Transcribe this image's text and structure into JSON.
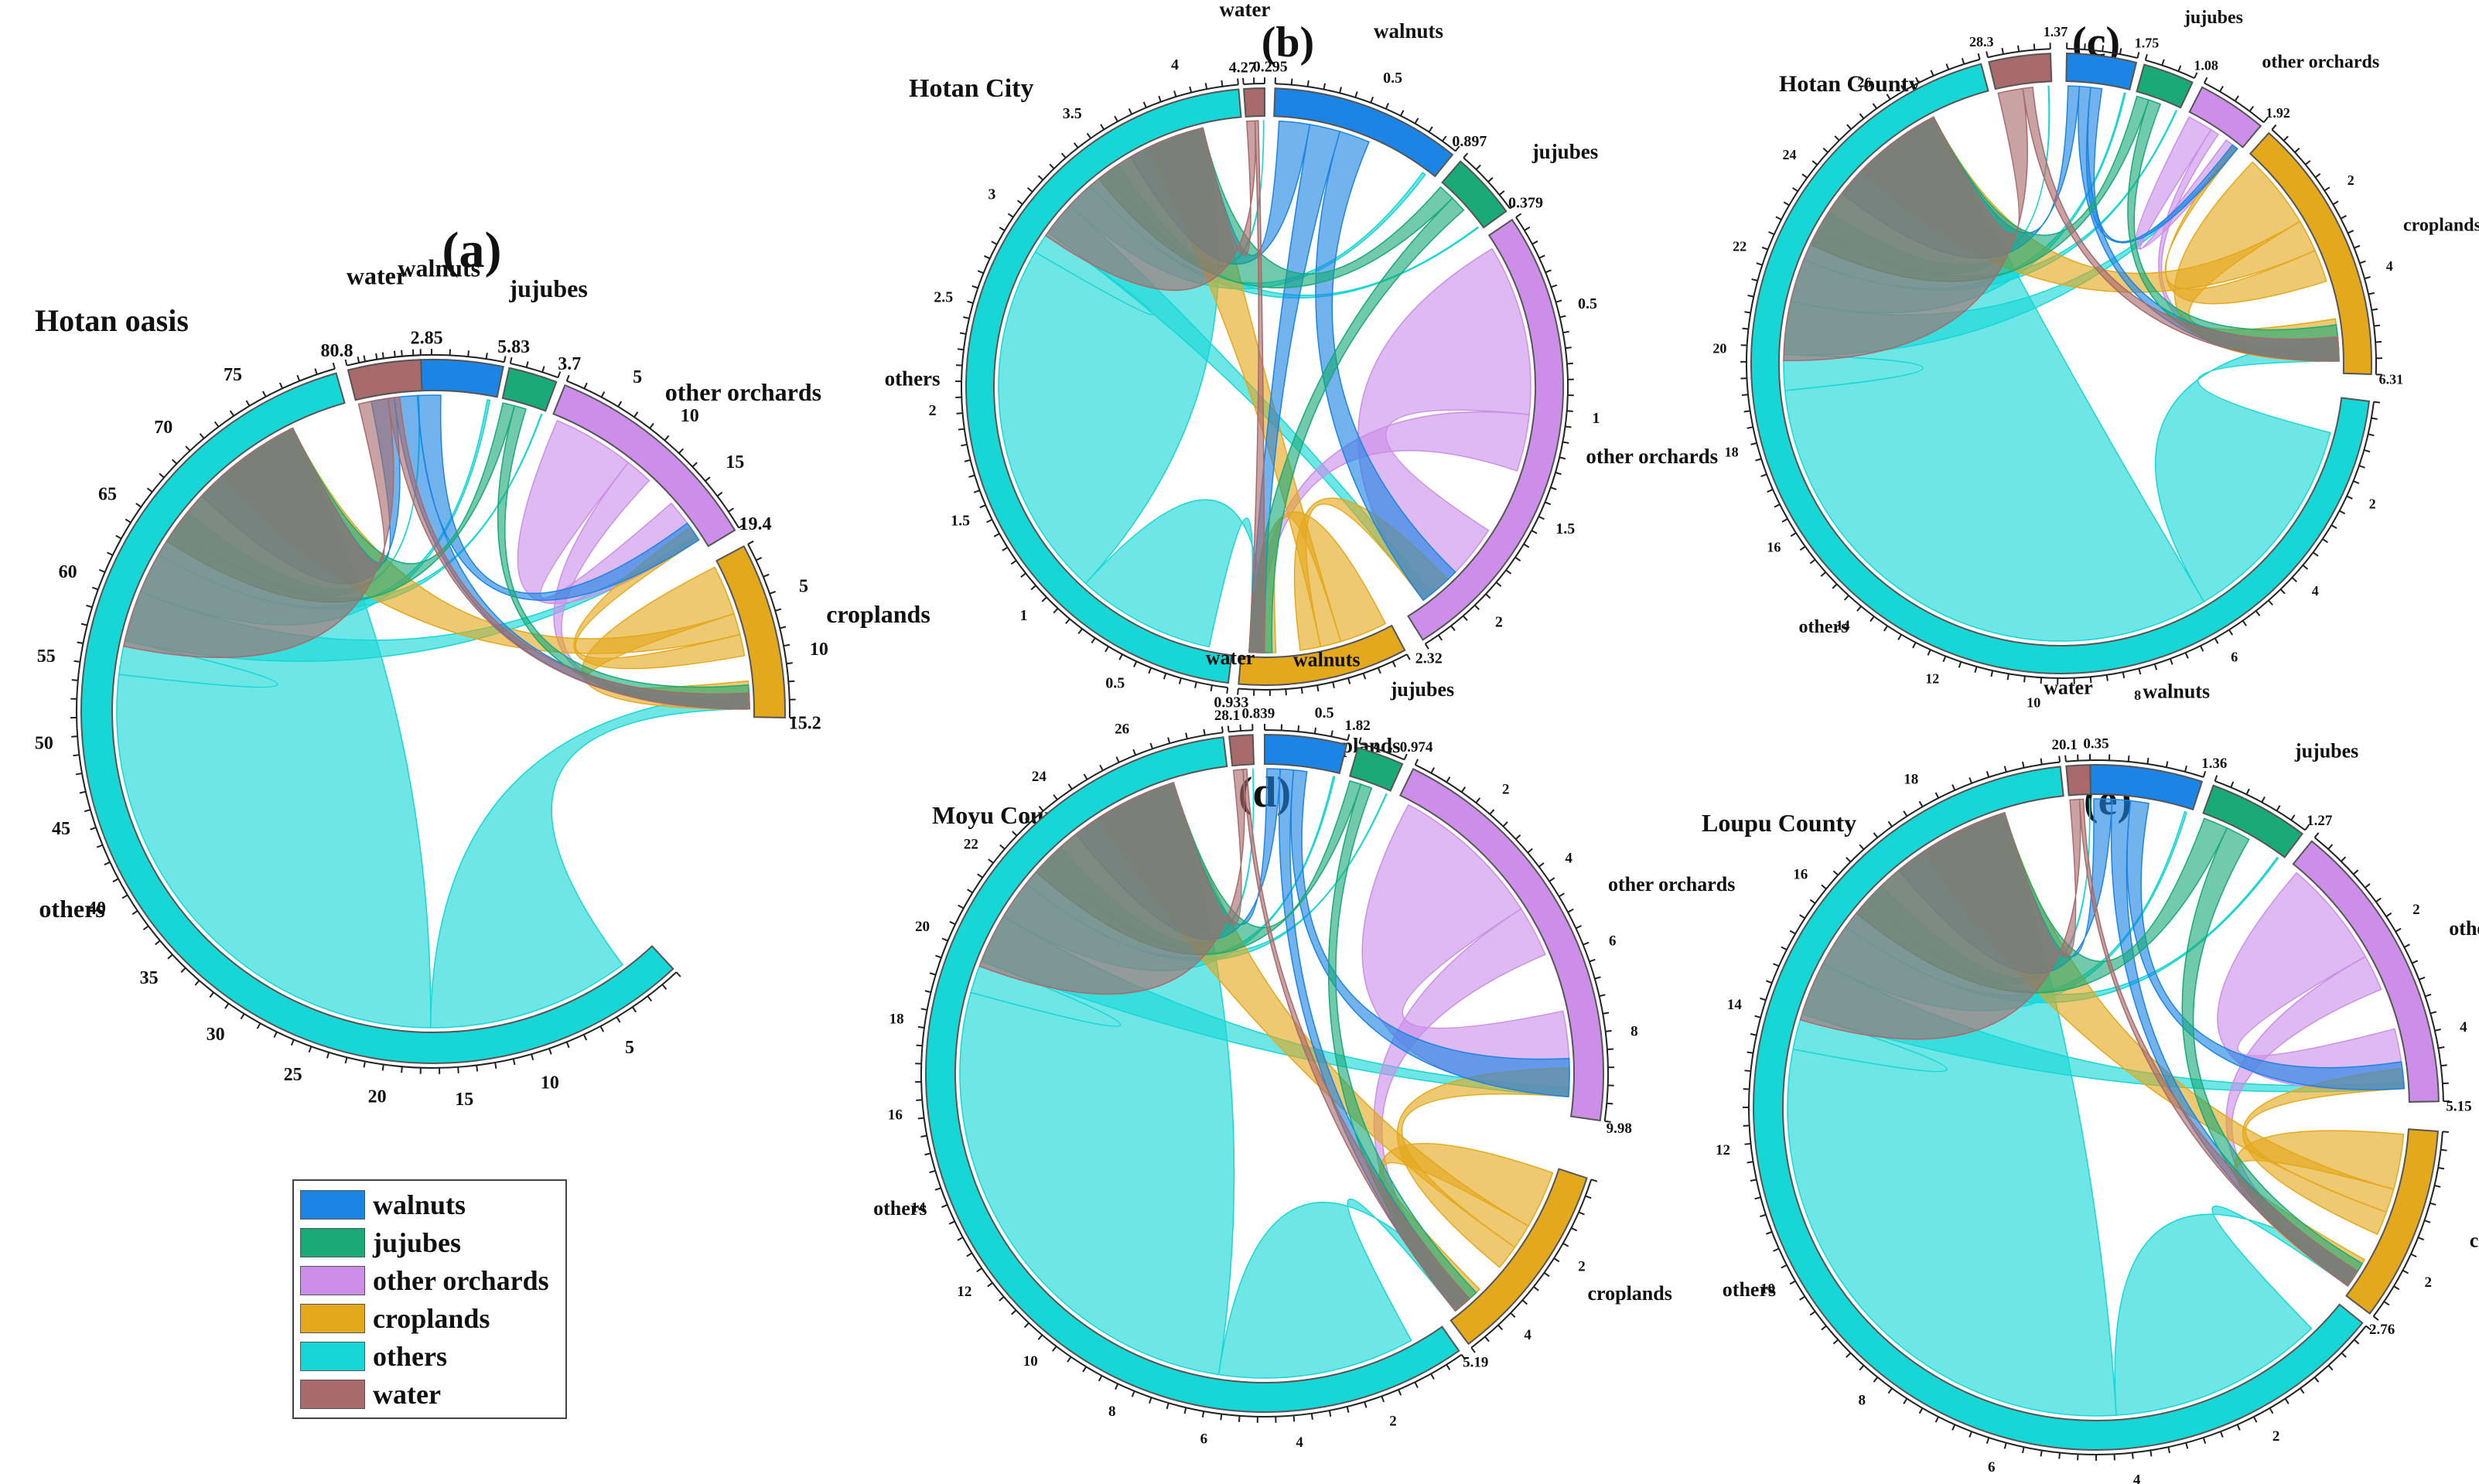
{
  "categories": [
    "walnuts",
    "jujubes",
    "other orchards",
    "croplands",
    "others",
    "water"
  ],
  "colors": {
    "walnuts": "#1b84e4",
    "jujubes": "#19aa78",
    "other orchards": "#cc8ee8",
    "croplands": "#e4a81c",
    "others": "#17d6d6",
    "water": "#a86a6a"
  },
  "legend": [
    {
      "label": "walnuts",
      "color": "#1b84e4"
    },
    {
      "label": "jujubes",
      "color": "#19aa78"
    },
    {
      "label": "other orchards",
      "color": "#cc8ee8"
    },
    {
      "label": "croplands",
      "color": "#e4a81c"
    },
    {
      "label": "others",
      "color": "#17d6d6"
    },
    {
      "label": "water",
      "color": "#a86a6a"
    }
  ],
  "chart_data": [
    {
      "type": "chord",
      "panel_label": "(a)",
      "title": "Hotan oasis",
      "sectors": [
        {
          "name": "walnuts",
          "value": 5.83,
          "end_label": "5.83",
          "ticks": []
        },
        {
          "name": "jujubes",
          "value": 3.7,
          "end_label": "3.7",
          "ticks": []
        },
        {
          "name": "other orchards",
          "value": 19.4,
          "end_label": "19.4",
          "ticks": [
            "5",
            "10",
            "15"
          ]
        },
        {
          "name": "croplands",
          "value": 15.2,
          "end_label": "15.2",
          "ticks": [
            "5",
            "10"
          ]
        },
        {
          "name": "others",
          "value": 80.8,
          "end_label": "80.8",
          "ticks": [
            "5",
            "10",
            "15",
            "20",
            "25",
            "30",
            "35",
            "40",
            "45",
            "50",
            "55",
            "60",
            "65",
            "70",
            "75"
          ]
        },
        {
          "name": "water",
          "value": 2.85,
          "end_label": "2.85",
          "ticks": []
        }
      ]
    },
    {
      "type": "chord",
      "panel_label": "(b)",
      "title": "Hotan City",
      "sectors": [
        {
          "name": "walnuts",
          "value": 0.897,
          "end_label": "0.897",
          "ticks": [
            "0.5"
          ]
        },
        {
          "name": "jujubes",
          "value": 0.379,
          "end_label": "0.379",
          "ticks": []
        },
        {
          "name": "other orchards",
          "value": 2.32,
          "end_label": "2.32",
          "ticks": [
            "0.5",
            "1",
            "1.5",
            "2"
          ]
        },
        {
          "name": "croplands",
          "value": 0.933,
          "end_label": "0.933",
          "ticks": [
            "0.5"
          ]
        },
        {
          "name": "others",
          "value": 4.27,
          "end_label": "4.27",
          "ticks": [
            "0.5",
            "1",
            "1.5",
            "2",
            "2.5",
            "3",
            "3.5",
            "4"
          ]
        },
        {
          "name": "water",
          "value": 0.295,
          "end_label": "0.295",
          "ticks": []
        }
      ]
    },
    {
      "type": "chord",
      "panel_label": "(c)",
      "title": "Hotan County",
      "sectors": [
        {
          "name": "walnuts",
          "value": 1.75,
          "end_label": "1.75",
          "ticks": []
        },
        {
          "name": "jujubes",
          "value": 1.08,
          "end_label": "1.08",
          "ticks": []
        },
        {
          "name": "other orchards",
          "value": 1.92,
          "end_label": "1.92",
          "ticks": []
        },
        {
          "name": "croplands",
          "value": 6.31,
          "end_label": "6.31",
          "ticks": [
            "2",
            "4"
          ]
        },
        {
          "name": "others",
          "value": 28.3,
          "end_label": "28.3",
          "ticks": [
            "2",
            "4",
            "6",
            "8",
            "10",
            "12",
            "14",
            "16",
            "18",
            "20",
            "22",
            "24",
            "26"
          ]
        },
        {
          "name": "water",
          "value": 1.37,
          "end_label": "1.37",
          "ticks": []
        }
      ]
    },
    {
      "type": "chord",
      "panel_label": "(d)",
      "title": "Moyu County",
      "sectors": [
        {
          "name": "walnuts",
          "value": 1.82,
          "end_label": "1.82",
          "ticks": []
        },
        {
          "name": "jujubes",
          "value": 0.974,
          "end_label": "0.974",
          "ticks": []
        },
        {
          "name": "other orchards",
          "value": 9.98,
          "end_label": "9.98",
          "ticks": [
            "2",
            "4",
            "6",
            "8"
          ]
        },
        {
          "name": "croplands",
          "value": 5.19,
          "end_label": "5.19",
          "ticks": [
            "2",
            "4"
          ]
        },
        {
          "name": "others",
          "value": 28.1,
          "end_label": "28.1",
          "ticks": [
            "2",
            "4",
            "6",
            "8",
            "10",
            "12",
            "14",
            "16",
            "18",
            "20",
            "22",
            "24",
            "26"
          ]
        },
        {
          "name": "water",
          "value": 0.839,
          "end_label": "0.839",
          "ticks": []
        }
      ]
    },
    {
      "type": "chord",
      "panel_label": "(e)",
      "title": "Loupu County",
      "sectors": [
        {
          "name": "walnuts",
          "value": 1.36,
          "end_label": "1.36",
          "ticks": []
        },
        {
          "name": "jujubes",
          "value": 1.27,
          "end_label": "1.27",
          "ticks": []
        },
        {
          "name": "other orchards",
          "value": 5.15,
          "end_label": "5.15",
          "ticks": [
            "2",
            "4"
          ]
        },
        {
          "name": "croplands",
          "value": 2.76,
          "end_label": "2.76",
          "ticks": [
            "2"
          ]
        },
        {
          "name": "others",
          "value": 20.1,
          "end_label": "20.1",
          "ticks": [
            "2",
            "4",
            "6",
            "8",
            "10",
            "12",
            "14",
            "16",
            "18"
          ]
        },
        {
          "name": "water",
          "value": 0.35,
          "end_label": "0.35",
          "ticks": []
        }
      ]
    }
  ]
}
